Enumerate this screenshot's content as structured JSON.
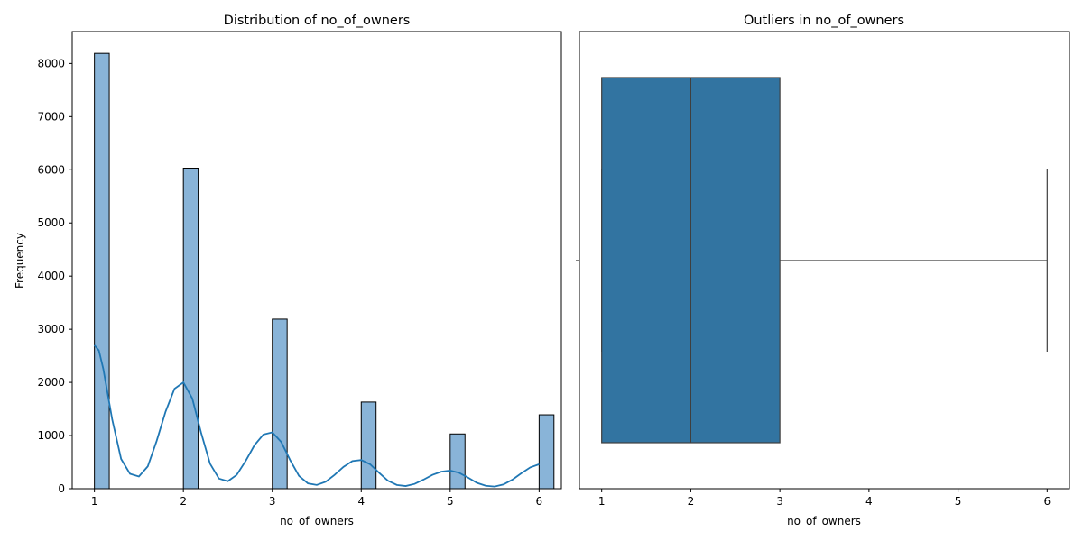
{
  "chart_data": [
    {
      "type": "bar",
      "title": "Distribution of no_of_owners",
      "xlabel": "no_of_owners",
      "ylabel": "Frequency",
      "xlim": [
        0.75,
        6.25
      ],
      "ylim": [
        0,
        8600
      ],
      "xticks": [
        1,
        2,
        3,
        4,
        5,
        6
      ],
      "yticks": [
        0,
        1000,
        2000,
        3000,
        4000,
        5000,
        6000,
        7000,
        8000
      ],
      "bin_width": 0.1667,
      "bars": [
        {
          "x": 1,
          "count": 8190
        },
        {
          "x": 2,
          "count": 6030
        },
        {
          "x": 3,
          "count": 3190
        },
        {
          "x": 4,
          "count": 1630
        },
        {
          "x": 5,
          "count": 1030
        },
        {
          "x": 6,
          "count": 1390
        }
      ],
      "kde": {
        "x": [
          1.0,
          1.05,
          1.1,
          1.2,
          1.3,
          1.4,
          1.5,
          1.6,
          1.7,
          1.8,
          1.9,
          2.0,
          2.1,
          2.2,
          2.3,
          2.4,
          2.5,
          2.6,
          2.7,
          2.8,
          2.9,
          3.0,
          3.1,
          3.2,
          3.3,
          3.4,
          3.5,
          3.6,
          3.7,
          3.8,
          3.9,
          4.0,
          4.1,
          4.2,
          4.3,
          4.4,
          4.5,
          4.6,
          4.7,
          4.8,
          4.9,
          5.0,
          5.1,
          5.2,
          5.3,
          5.4,
          5.5,
          5.6,
          5.7,
          5.8,
          5.9,
          6.0
        ],
        "y": [
          2700,
          2600,
          2250,
          1300,
          560,
          280,
          230,
          420,
          900,
          1450,
          1880,
          2000,
          1700,
          1050,
          470,
          190,
          140,
          260,
          520,
          820,
          1020,
          1060,
          880,
          540,
          240,
          100,
          70,
          130,
          260,
          410,
          520,
          540,
          460,
          300,
          150,
          70,
          50,
          90,
          170,
          260,
          320,
          340,
          300,
          210,
          110,
          55,
          40,
          80,
          170,
          290,
          400,
          460
        ]
      },
      "colors": {
        "bar_fill": "#89b4d8",
        "bar_edge": "#000000",
        "kde": "#1f77b4"
      }
    },
    {
      "type": "box",
      "title": "Outliers in no_of_owners",
      "xlabel": "no_of_owners",
      "xlim": [
        0.75,
        6.25
      ],
      "xticks": [
        1,
        2,
        3,
        4,
        5,
        6
      ],
      "whisker_low": 1,
      "q1": 1,
      "median": 2,
      "q3": 3,
      "whisker_high": 6,
      "colors": {
        "box_fill": "#3274a1",
        "line": "#3f3f3f"
      }
    }
  ]
}
